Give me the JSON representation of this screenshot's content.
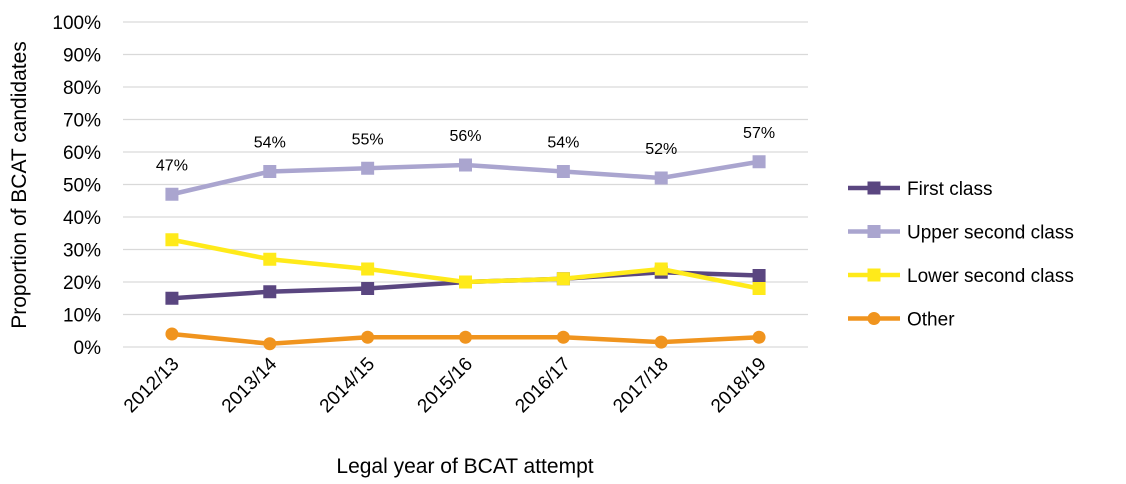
{
  "chart_data": {
    "type": "line",
    "x_label": "Legal year of BCAT attempt",
    "y_label": "Proportion of BCAT candidates",
    "categories": [
      "2012/13",
      "2013/14",
      "2014/15",
      "2015/16",
      "2016/17",
      "2017/18",
      "2018/19"
    ],
    "series": [
      {
        "name": "First class",
        "color": "#5a4680",
        "marker": "square",
        "values": [
          15,
          17,
          18,
          20,
          21,
          23,
          22
        ]
      },
      {
        "name": "Upper second class",
        "color": "#aaa5cf",
        "marker": "square",
        "values": [
          47,
          54,
          55,
          56,
          54,
          52,
          57
        ],
        "value_labels": [
          "47%",
          "54%",
          "55%",
          "56%",
          "54%",
          "52%",
          "57%"
        ]
      },
      {
        "name": "Lower second class",
        "color": "#ffea1a",
        "marker": "square",
        "values": [
          33,
          27,
          24,
          20,
          21,
          24,
          18
        ]
      },
      {
        "name": "Other",
        "color": "#f0941e",
        "marker": "circle",
        "values": [
          4,
          1,
          3,
          3,
          3,
          1.5,
          3
        ]
      }
    ],
    "ylim": [
      0,
      100
    ],
    "yticks": [
      {
        "value": 0,
        "label": "0%"
      },
      {
        "value": 10,
        "label": "10%"
      },
      {
        "value": 20,
        "label": "20%"
      },
      {
        "value": 30,
        "label": "30%"
      },
      {
        "value": 40,
        "label": "40%"
      },
      {
        "value": 50,
        "label": "50%"
      },
      {
        "value": 60,
        "label": "60%"
      },
      {
        "value": 70,
        "label": "70%"
      },
      {
        "value": 80,
        "label": "80%"
      },
      {
        "value": 90,
        "label": "90%"
      },
      {
        "value": 100,
        "label": "100%"
      }
    ],
    "grid": true,
    "legend": "right"
  }
}
